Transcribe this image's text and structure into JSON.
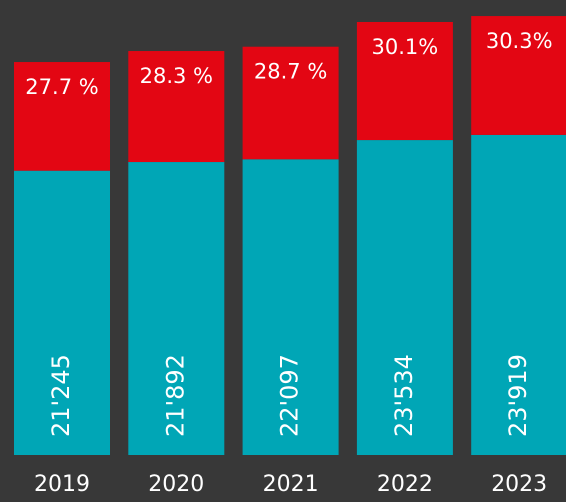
{
  "chart_data": {
    "type": "bar",
    "stacked": true,
    "categories": [
      "2019",
      "2020",
      "2021",
      "2022",
      "2023"
    ],
    "series": [
      {
        "name": null,
        "color": "#00a6b6",
        "values": [
          21245,
          21892,
          22097,
          23534,
          23919
        ],
        "value_labels": [
          "21'245",
          "21'892",
          "22'097",
          "23'534",
          "23'919"
        ]
      },
      {
        "name": null,
        "color": "#e30613",
        "axis": "y2",
        "values": [
          27.7,
          28.3,
          28.7,
          30.1,
          30.3
        ],
        "value_labels": [
          "27.7 %",
          "28.3 %",
          "28.7 %",
          "30.1%",
          "30.3%"
        ]
      }
    ],
    "ylim": [
      0,
      34000
    ],
    "y2lim": [
      0,
      116
    ],
    "background": "#383838",
    "label_color": "#ffffff"
  }
}
